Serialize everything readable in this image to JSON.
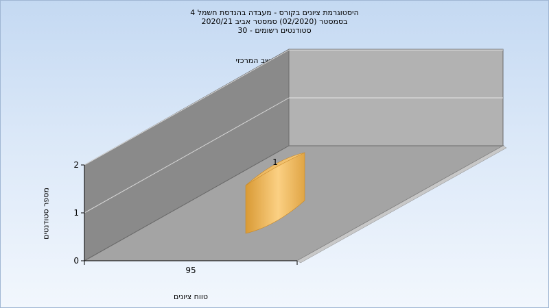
{
  "chart_data": {
    "type": "bar",
    "title_lines": [
      "היסטוגרמת ציונים בקורס - מעבדה בהנדסת חשמל 4",
      "בסמסטר  (02/2020)  סמסטר אביב 2020/21",
      "סטודנטים רשומים - 30"
    ],
    "subtitle": "במשימה : ציון סופי במחשב המרכזי",
    "xlabel": "טווח ציונים",
    "ylabel": "מספר סטודנטים",
    "categories": [
      "95"
    ],
    "values": [
      1
    ],
    "data_labels": [
      "1"
    ],
    "ylim": [
      0,
      2
    ],
    "yticks": [
      "0",
      "1",
      "2"
    ],
    "grid": true,
    "legend": "none",
    "colors": {
      "bar_light": "#fbd083",
      "bar_dark": "#d99a35",
      "wall_left": "#8a8a8a",
      "wall_back": "#b2b2b2",
      "floor": "#a4a4a4"
    }
  }
}
